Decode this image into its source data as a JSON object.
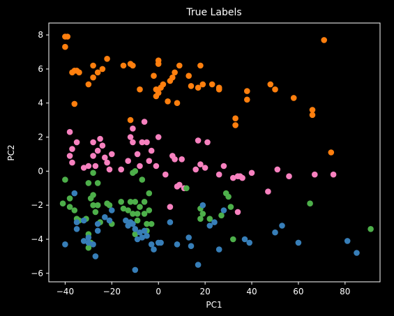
{
  "chart_data": {
    "type": "scatter",
    "title": "True Labels",
    "xlabel": "PC1",
    "ylabel": "PC2",
    "xlim": [
      -47,
      95
    ],
    "ylim": [
      -6.5,
      8.7
    ],
    "xticks": [
      -40,
      -20,
      0,
      20,
      40,
      60,
      80
    ],
    "yticks": [
      -6,
      -4,
      -2,
      0,
      2,
      4,
      6,
      8
    ],
    "grid": false,
    "legend": "none",
    "background": "#000000",
    "axis_color": "#ffffff",
    "series": [
      {
        "color": "#ff7f0e",
        "points": [
          [
            -40,
            7.9
          ],
          [
            -39,
            7.9
          ],
          [
            -40,
            7.3
          ],
          [
            -37,
            5.8
          ],
          [
            -35,
            5.9
          ],
          [
            -36,
            5.9
          ],
          [
            -34,
            5.8
          ],
          [
            -36,
            3.95
          ],
          [
            -30,
            5.1
          ],
          [
            -28,
            6.2
          ],
          [
            -28,
            5.5
          ],
          [
            -26,
            5.8
          ],
          [
            -24,
            6.0
          ],
          [
            -22,
            6.6
          ],
          [
            -15,
            6.2
          ],
          [
            -12,
            6.3
          ],
          [
            -11,
            6.2
          ],
          [
            -8,
            4.8
          ],
          [
            -2,
            5.6
          ],
          [
            -1,
            4.8
          ],
          [
            -1,
            4.4
          ],
          [
            0,
            6.5
          ],
          [
            0,
            6.3
          ],
          [
            0,
            4.6
          ],
          [
            1,
            4.9
          ],
          [
            2,
            5.1
          ],
          [
            4,
            4.1
          ],
          [
            5,
            5.3
          ],
          [
            6,
            5.5
          ],
          [
            7,
            5.8
          ],
          [
            8,
            4.0
          ],
          [
            9,
            6.2
          ],
          [
            13,
            5.6
          ],
          [
            14,
            5.0
          ],
          [
            17,
            4.9
          ],
          [
            18,
            6.2
          ],
          [
            19,
            5.1
          ],
          [
            23,
            5.1
          ],
          [
            26,
            4.9
          ],
          [
            26,
            4.8
          ],
          [
            38,
            4.7
          ],
          [
            38,
            4.2
          ],
          [
            48,
            5.1
          ],
          [
            50,
            4.8
          ],
          [
            58,
            4.3
          ],
          [
            66,
            3.6
          ],
          [
            66,
            3.3
          ],
          [
            71,
            7.7
          ],
          [
            74,
            1.1
          ],
          [
            -12,
            3.0
          ],
          [
            33,
            3.1
          ],
          [
            33,
            2.7
          ]
        ]
      },
      {
        "color": "#f781bf",
        "points": [
          [
            -38,
            2.3
          ],
          [
            -38,
            0.9
          ],
          [
            -37,
            1.3
          ],
          [
            -37,
            0.5
          ],
          [
            -35,
            1.7
          ],
          [
            -32,
            0.2
          ],
          [
            -30,
            0.3
          ],
          [
            -28,
            1.7
          ],
          [
            -28,
            0.9
          ],
          [
            -27,
            0.3
          ],
          [
            -26,
            1.2
          ],
          [
            -25,
            1.9
          ],
          [
            -24,
            1.5
          ],
          [
            -23,
            0.8
          ],
          [
            -22,
            0.5
          ],
          [
            -21,
            0.1
          ],
          [
            -20,
            1.0
          ],
          [
            -16,
            0.1
          ],
          [
            -13,
            0.6
          ],
          [
            -11,
            1.7
          ],
          [
            -12,
            2.0
          ],
          [
            -11,
            2.5
          ],
          [
            -9,
            1.0
          ],
          [
            -8,
            0.3
          ],
          [
            -7,
            1.7
          ],
          [
            -6,
            2.9
          ],
          [
            -5,
            1.7
          ],
          [
            -4,
            0.6
          ],
          [
            -3,
            1.2
          ],
          [
            -1,
            0.3
          ],
          [
            0,
            2.0
          ],
          [
            3,
            -0.2
          ],
          [
            6,
            0.9
          ],
          [
            7,
            0.7
          ],
          [
            8,
            -0.9
          ],
          [
            9,
            -0.8
          ],
          [
            10,
            0.7
          ],
          [
            11,
            -1.0
          ],
          [
            16,
            0.1
          ],
          [
            17,
            1.8
          ],
          [
            18,
            0.4
          ],
          [
            20,
            0.2
          ],
          [
            21,
            1.7
          ],
          [
            26,
            -0.2
          ],
          [
            28,
            0.3
          ],
          [
            32,
            -0.4
          ],
          [
            34,
            -0.3
          ],
          [
            35,
            -0.3
          ],
          [
            36,
            -0.4
          ],
          [
            40,
            -0.1
          ],
          [
            47,
            -1.2
          ],
          [
            51,
            0.1
          ],
          [
            56,
            -0.3
          ],
          [
            67,
            -0.2
          ],
          [
            75,
            -0.2
          ],
          [
            34,
            -2.4
          ],
          [
            5,
            -2.1
          ]
        ]
      },
      {
        "color": "#4daf4a",
        "points": [
          [
            -41,
            -1.9
          ],
          [
            -40,
            -0.5
          ],
          [
            -38,
            -1.6
          ],
          [
            -38,
            -2.1
          ],
          [
            -36,
            -2.3
          ],
          [
            -35,
            -2.8
          ],
          [
            -34,
            -2.9
          ],
          [
            -31,
            -2.8
          ],
          [
            -30,
            -0.7
          ],
          [
            -29,
            -1.6
          ],
          [
            -28,
            -2.0
          ],
          [
            -28,
            -1.4
          ],
          [
            -28,
            -0.1
          ],
          [
            -27,
            -2.4
          ],
          [
            -26,
            -2.0
          ],
          [
            -26,
            -0.7
          ],
          [
            -25,
            -3.0
          ],
          [
            -22,
            -1.9
          ],
          [
            -21,
            -2.0
          ],
          [
            -20,
            -3.1
          ],
          [
            -12,
            -1.8
          ],
          [
            -11,
            -0.1
          ],
          [
            -10,
            -0.0
          ],
          [
            -10,
            -1.8
          ],
          [
            -9,
            -2.5
          ],
          [
            -9,
            -2.9
          ],
          [
            -8,
            -2.1
          ],
          [
            -7,
            -0.5
          ],
          [
            -6,
            -1.8
          ],
          [
            -6,
            -2.5
          ],
          [
            -5,
            -3.1
          ],
          [
            -4,
            -1.3
          ],
          [
            -4,
            -2.3
          ],
          [
            -3,
            -3.1
          ],
          [
            -5,
            -3.5
          ],
          [
            -10,
            -3.7
          ],
          [
            -16,
            -1.8
          ],
          [
            -15,
            -2.2
          ],
          [
            -13,
            -2.3
          ],
          [
            -11,
            -2.5
          ],
          [
            -29,
            -4.2
          ],
          [
            -30,
            -4.5
          ],
          [
            -30,
            -3.7
          ],
          [
            12,
            -1.0
          ],
          [
            18,
            -2.2
          ],
          [
            18,
            -2.8
          ],
          [
            19,
            -2.5
          ],
          [
            22,
            -2.8
          ],
          [
            27,
            -2.6
          ],
          [
            29,
            -1.3
          ],
          [
            30,
            -1.5
          ],
          [
            31,
            -2.1
          ],
          [
            32,
            -4.0
          ],
          [
            65,
            -1.9
          ],
          [
            91,
            -3.4
          ]
        ]
      },
      {
        "color": "#377eb8",
        "points": [
          [
            -40,
            -4.3
          ],
          [
            -36,
            -1.3
          ],
          [
            -35,
            -3.0
          ],
          [
            -35,
            -3.4
          ],
          [
            -32,
            -4.1
          ],
          [
            -30,
            -4.2
          ],
          [
            -28,
            -4.3
          ],
          [
            -27,
            -5.0
          ],
          [
            -26,
            -3.5
          ],
          [
            -26,
            -3.1
          ],
          [
            -23,
            -2.7
          ],
          [
            -21,
            -2.9
          ],
          [
            -20,
            -2.3
          ],
          [
            -14,
            -2.9
          ],
          [
            -13,
            -3.2
          ],
          [
            -12,
            -3.0
          ],
          [
            -11,
            -3.1
          ],
          [
            -10,
            -3.4
          ],
          [
            -9,
            -4.0
          ],
          [
            -8,
            -3.6
          ],
          [
            -7,
            -3.9
          ],
          [
            -6,
            -3.5
          ],
          [
            -5,
            -3.8
          ],
          [
            -3,
            -4.3
          ],
          [
            -2,
            -4.6
          ],
          [
            0,
            -4.2
          ],
          [
            1,
            -4.2
          ],
          [
            5,
            -3.0
          ],
          [
            8,
            -4.3
          ],
          [
            13,
            -3.9
          ],
          [
            14,
            -4.4
          ],
          [
            17,
            -5.5
          ],
          [
            19,
            -2.0
          ],
          [
            22,
            -3.2
          ],
          [
            24,
            -3.0
          ],
          [
            26,
            -4.6
          ],
          [
            28,
            -2.3
          ],
          [
            37,
            -4.0
          ],
          [
            39,
            -4.2
          ],
          [
            50,
            -3.6
          ],
          [
            53,
            -3.2
          ],
          [
            60,
            -4.2
          ],
          [
            81,
            -4.1
          ],
          [
            85,
            -4.8
          ],
          [
            -10,
            -5.8
          ],
          [
            -30,
            -3.9
          ],
          [
            -32,
            -2.9
          ]
        ]
      }
    ]
  }
}
